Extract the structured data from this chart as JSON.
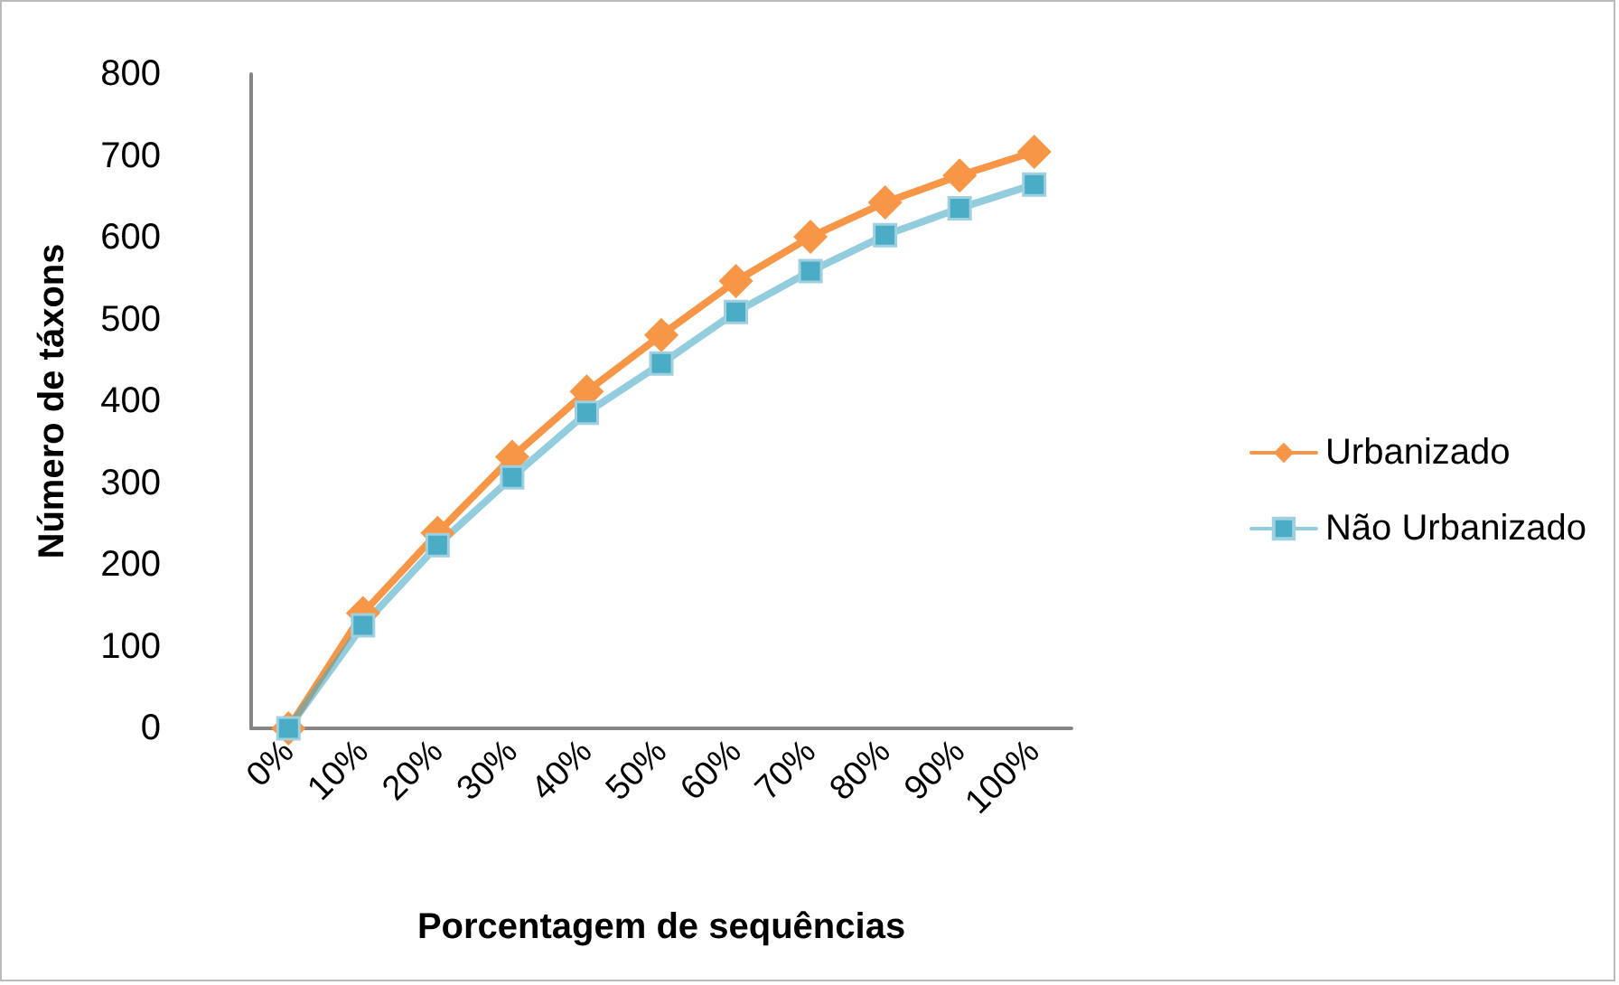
{
  "chart_data": {
    "type": "line",
    "xlabel": "Porcentagem de sequências",
    "ylabel": "Número de táxons",
    "categories": [
      "0%",
      "10%",
      "20%",
      "30%",
      "40%",
      "50%",
      "60%",
      "70%",
      "80%",
      "90%",
      "100%"
    ],
    "series": [
      {
        "name": "Urbanizado",
        "color": "#f79646",
        "marker": "diamond",
        "values": [
          0,
          141,
          239,
          332,
          412,
          481,
          547,
          601,
          643,
          676,
          705
        ]
      },
      {
        "name": "Não Urbanizado",
        "color": "#4bacc6",
        "marker": "square",
        "values": [
          0,
          126,
          224,
          307,
          386,
          446,
          509,
          559,
          603,
          636,
          665
        ]
      }
    ],
    "ylim": [
      0,
      800
    ],
    "yticks": [
      0,
      100,
      200,
      300,
      400,
      500,
      600,
      700,
      800
    ],
    "grid": false,
    "legend": "right",
    "line_style": "solid"
  }
}
